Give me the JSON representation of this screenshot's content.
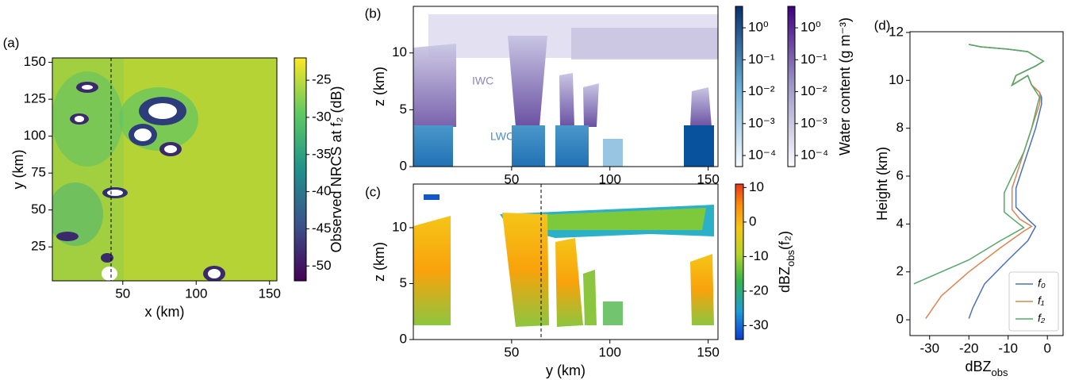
{
  "chart_data": [
    {
      "type": "heatmap",
      "panel_label": "(a)",
      "xlabel": "x (km)",
      "ylabel": "y (km)",
      "xlim": [
        2,
        155
      ],
      "xticks": [
        50,
        100,
        150
      ],
      "ylim": [
        2,
        153
      ],
      "yticks": [
        25,
        50,
        75,
        100,
        125,
        150
      ],
      "marker_x": 42,
      "colorbars": [
        {
          "label": "Observed NRCS at f₂ (dB)",
          "lim": [
            -52,
            -22
          ],
          "ticks": [
            -50,
            -45,
            -40,
            -35,
            -30,
            -25
          ],
          "colormap": "viridis"
        }
      ]
    },
    {
      "type": "heatmap",
      "panel_label": "(b)",
      "ylabel": "z (km)",
      "xlim": [
        0,
        155
      ],
      "xticks": [
        50,
        100,
        150
      ],
      "ylim": [
        0,
        14.1
      ],
      "yticks": [
        0,
        5,
        10
      ],
      "annotations": [
        "IWC",
        "LWC"
      ],
      "colorbars": [
        {
          "log": true,
          "lim": [
            4.5e-05,
            4.7
          ],
          "colormap": "blues",
          "ticks": [
            {
              "value": 1,
              "label": "10⁰"
            },
            {
              "value": 0.1,
              "label": "10⁻¹"
            },
            {
              "value": 0.01,
              "label": "10⁻²"
            },
            {
              "value": 0.001,
              "label": "10⁻³"
            },
            {
              "value": 0.0001,
              "label": "10⁻⁴"
            }
          ]
        },
        {
          "label": "Water content (g m⁻³)",
          "log": true,
          "lim": [
            4.5e-05,
            4.7
          ],
          "colormap": "purples",
          "ticks": [
            {
              "value": 1,
              "label": "10⁰"
            },
            {
              "value": 0.1,
              "label": "10⁻¹"
            },
            {
              "value": 0.01,
              "label": "10⁻²"
            },
            {
              "value": 0.001,
              "label": "10⁻³"
            },
            {
              "value": 0.0001,
              "label": "10⁻⁴"
            }
          ]
        }
      ]
    },
    {
      "type": "heatmap",
      "panel_label": "(c)",
      "xlabel": "y (km)",
      "ylabel": "z (km)",
      "xlim": [
        0,
        155
      ],
      "xticks": [
        50,
        100,
        150
      ],
      "ylim": [
        0,
        13.9
      ],
      "yticks": [
        0,
        5,
        10
      ],
      "marker_x": 65,
      "colorbars": [
        {
          "label": [
            "dBZ",
            "obs",
            "(f₂)"
          ],
          "lim": [
            -34,
            11
          ],
          "ticks": [
            -30,
            -20,
            -10,
            0,
            10
          ],
          "colormap": "jet"
        }
      ]
    },
    {
      "type": "line",
      "panel_label": "(d)",
      "xlabel": [
        "dBZ",
        "obs"
      ],
      "ylabel": "Height (km)",
      "xlim": [
        -35,
        4
      ],
      "xticks": [
        -30,
        -20,
        -10,
        0
      ],
      "ylim": [
        -0.66,
        12.03
      ],
      "yticks": [
        0,
        2,
        4,
        6,
        8,
        10,
        12
      ],
      "legend": "lower right",
      "series": [
        {
          "name": "f₀",
          "color": "#4c72b0",
          "x": [
            -20,
            -19,
            -16,
            -10,
            -5,
            -3,
            -5,
            -8,
            -8,
            -6,
            -3,
            -1.5,
            -1.5,
            -2,
            -4,
            -5,
            -7,
            -9,
            -8,
            -3,
            -1,
            -3,
            -5,
            -10,
            -17,
            -20
          ],
          "values": [
            0.05,
            0.5,
            1.5,
            2.5,
            3.3,
            3.9,
            4.2,
            4.7,
            5.5,
            6.5,
            8,
            9,
            9.3,
            9.5,
            9.8,
            10.2,
            10,
            9.8,
            10.2,
            10.6,
            10.8,
            11,
            11.2,
            11.3,
            11.4,
            11.5
          ]
        },
        {
          "name": "f₁",
          "color": "#dd8452",
          "x": [
            -31,
            -27,
            -20,
            -12,
            -6,
            -4,
            -7,
            -9,
            -9,
            -7,
            -4,
            -2,
            -1.8,
            -2,
            -4,
            -5,
            -7,
            -9,
            -8,
            -3,
            -1,
            -3,
            -5,
            -10,
            -17,
            -20
          ],
          "values": [
            0.05,
            1,
            2,
            3,
            3.7,
            3.9,
            4.2,
            4.6,
            5.5,
            6.5,
            8,
            9,
            9.3,
            9.5,
            9.8,
            10.2,
            10,
            9.8,
            10.2,
            10.6,
            10.8,
            11,
            11.2,
            11.3,
            11.4,
            11.5
          ]
        },
        {
          "name": "f₂",
          "color": "#55a868",
          "x": [
            -34,
            -20,
            -12,
            -6,
            -8,
            -11,
            -11,
            -9,
            -6,
            -4,
            -2.5,
            -2,
            -4,
            -5,
            -7,
            -9,
            -8,
            -3,
            -1,
            -3,
            -5,
            -10,
            -17,
            -20
          ],
          "values": [
            1.5,
            2.5,
            3.3,
            3.85,
            4.1,
            4.5,
            5.3,
            6,
            7,
            8,
            9,
            9.3,
            9.8,
            10.2,
            10,
            9.8,
            10.2,
            10.6,
            10.8,
            11,
            11.2,
            11.3,
            11.4,
            11.5
          ]
        }
      ]
    }
  ]
}
